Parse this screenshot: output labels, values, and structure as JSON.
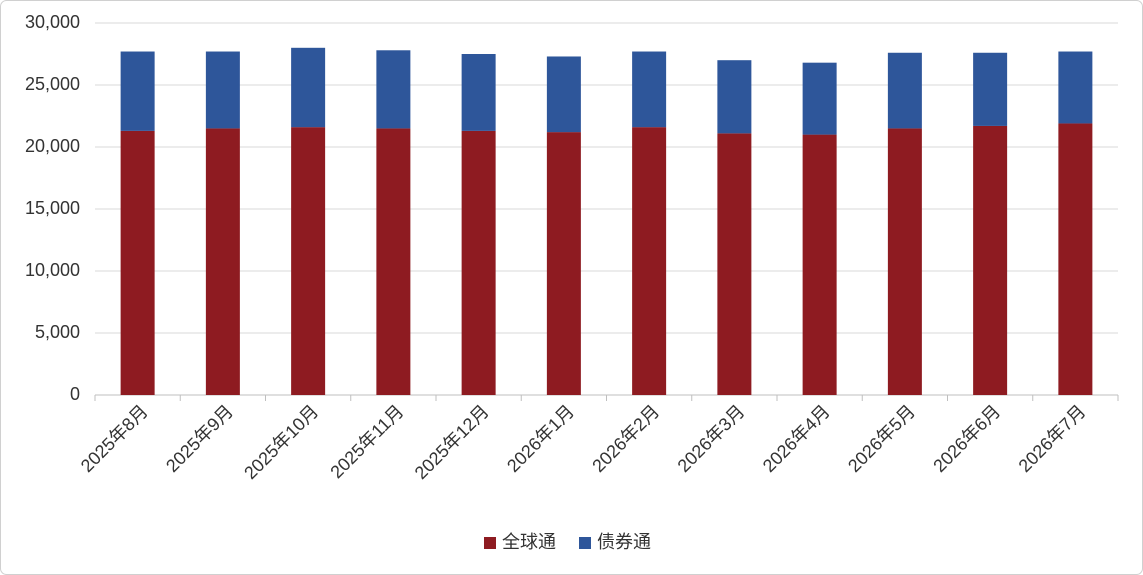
{
  "chart_data": {
    "type": "stacked_bar",
    "categories": [
      "2025年8月",
      "2025年9月",
      "2025年10月",
      "2025年11月",
      "2025年12月",
      "2026年1月",
      "2026年2月",
      "2026年3月",
      "2026年4月",
      "2026年5月",
      "2026年6月",
      "2026年7月"
    ],
    "series": [
      {
        "name": "全球通",
        "color": "#8e1b21",
        "values": [
          21300,
          21500,
          21600,
          21500,
          21300,
          21200,
          21600,
          21100,
          21000,
          21500,
          21700,
          21900
        ]
      },
      {
        "name": "债券通",
        "color": "#2e569a",
        "values": [
          6400,
          6200,
          6400,
          6300,
          6200,
          6100,
          6100,
          5900,
          5800,
          6100,
          5900,
          5800
        ]
      }
    ],
    "ylim": [
      0,
      30000
    ],
    "yticks": [
      0,
      {
        "value": 5000,
        "label": "5,000"
      },
      {
        "value": 10000,
        "label": "10,000"
      },
      {
        "value": 15000,
        "label": "15,000"
      },
      {
        "value": 20000,
        "label": "20,000"
      },
      {
        "value": 25000,
        "label": "25,000"
      },
      {
        "value": 30000,
        "label": "30,000"
      }
    ],
    "grid": true,
    "legend": "bottom"
  }
}
